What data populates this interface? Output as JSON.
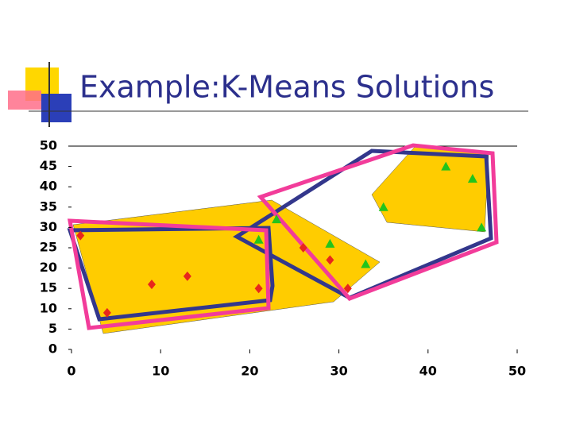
{
  "chart_data": {
    "type": "scatter",
    "title": "Example:K-Means Solutions",
    "xlim": [
      0,
      50
    ],
    "xticks": [
      0,
      10,
      20,
      30,
      40,
      50
    ],
    "ylim": [
      0,
      50
    ],
    "yticks": [
      0,
      5,
      10,
      15,
      20,
      25,
      30,
      35,
      40,
      45,
      50
    ],
    "series": [
      {
        "color": "#e8261c",
        "marker": "diamond",
        "x": [
          1,
          4,
          9,
          13,
          21,
          26,
          29,
          31
        ],
        "values": [
          28,
          9,
          16,
          18,
          15,
          25,
          22,
          15
        ]
      },
      {
        "color": "#22c41c",
        "marker": "triangle",
        "x": [
          21,
          23,
          29,
          33,
          35,
          42,
          45,
          46
        ],
        "values": [
          27,
          32,
          26,
          21,
          35,
          45,
          42,
          30
        ]
      }
    ]
  }
}
